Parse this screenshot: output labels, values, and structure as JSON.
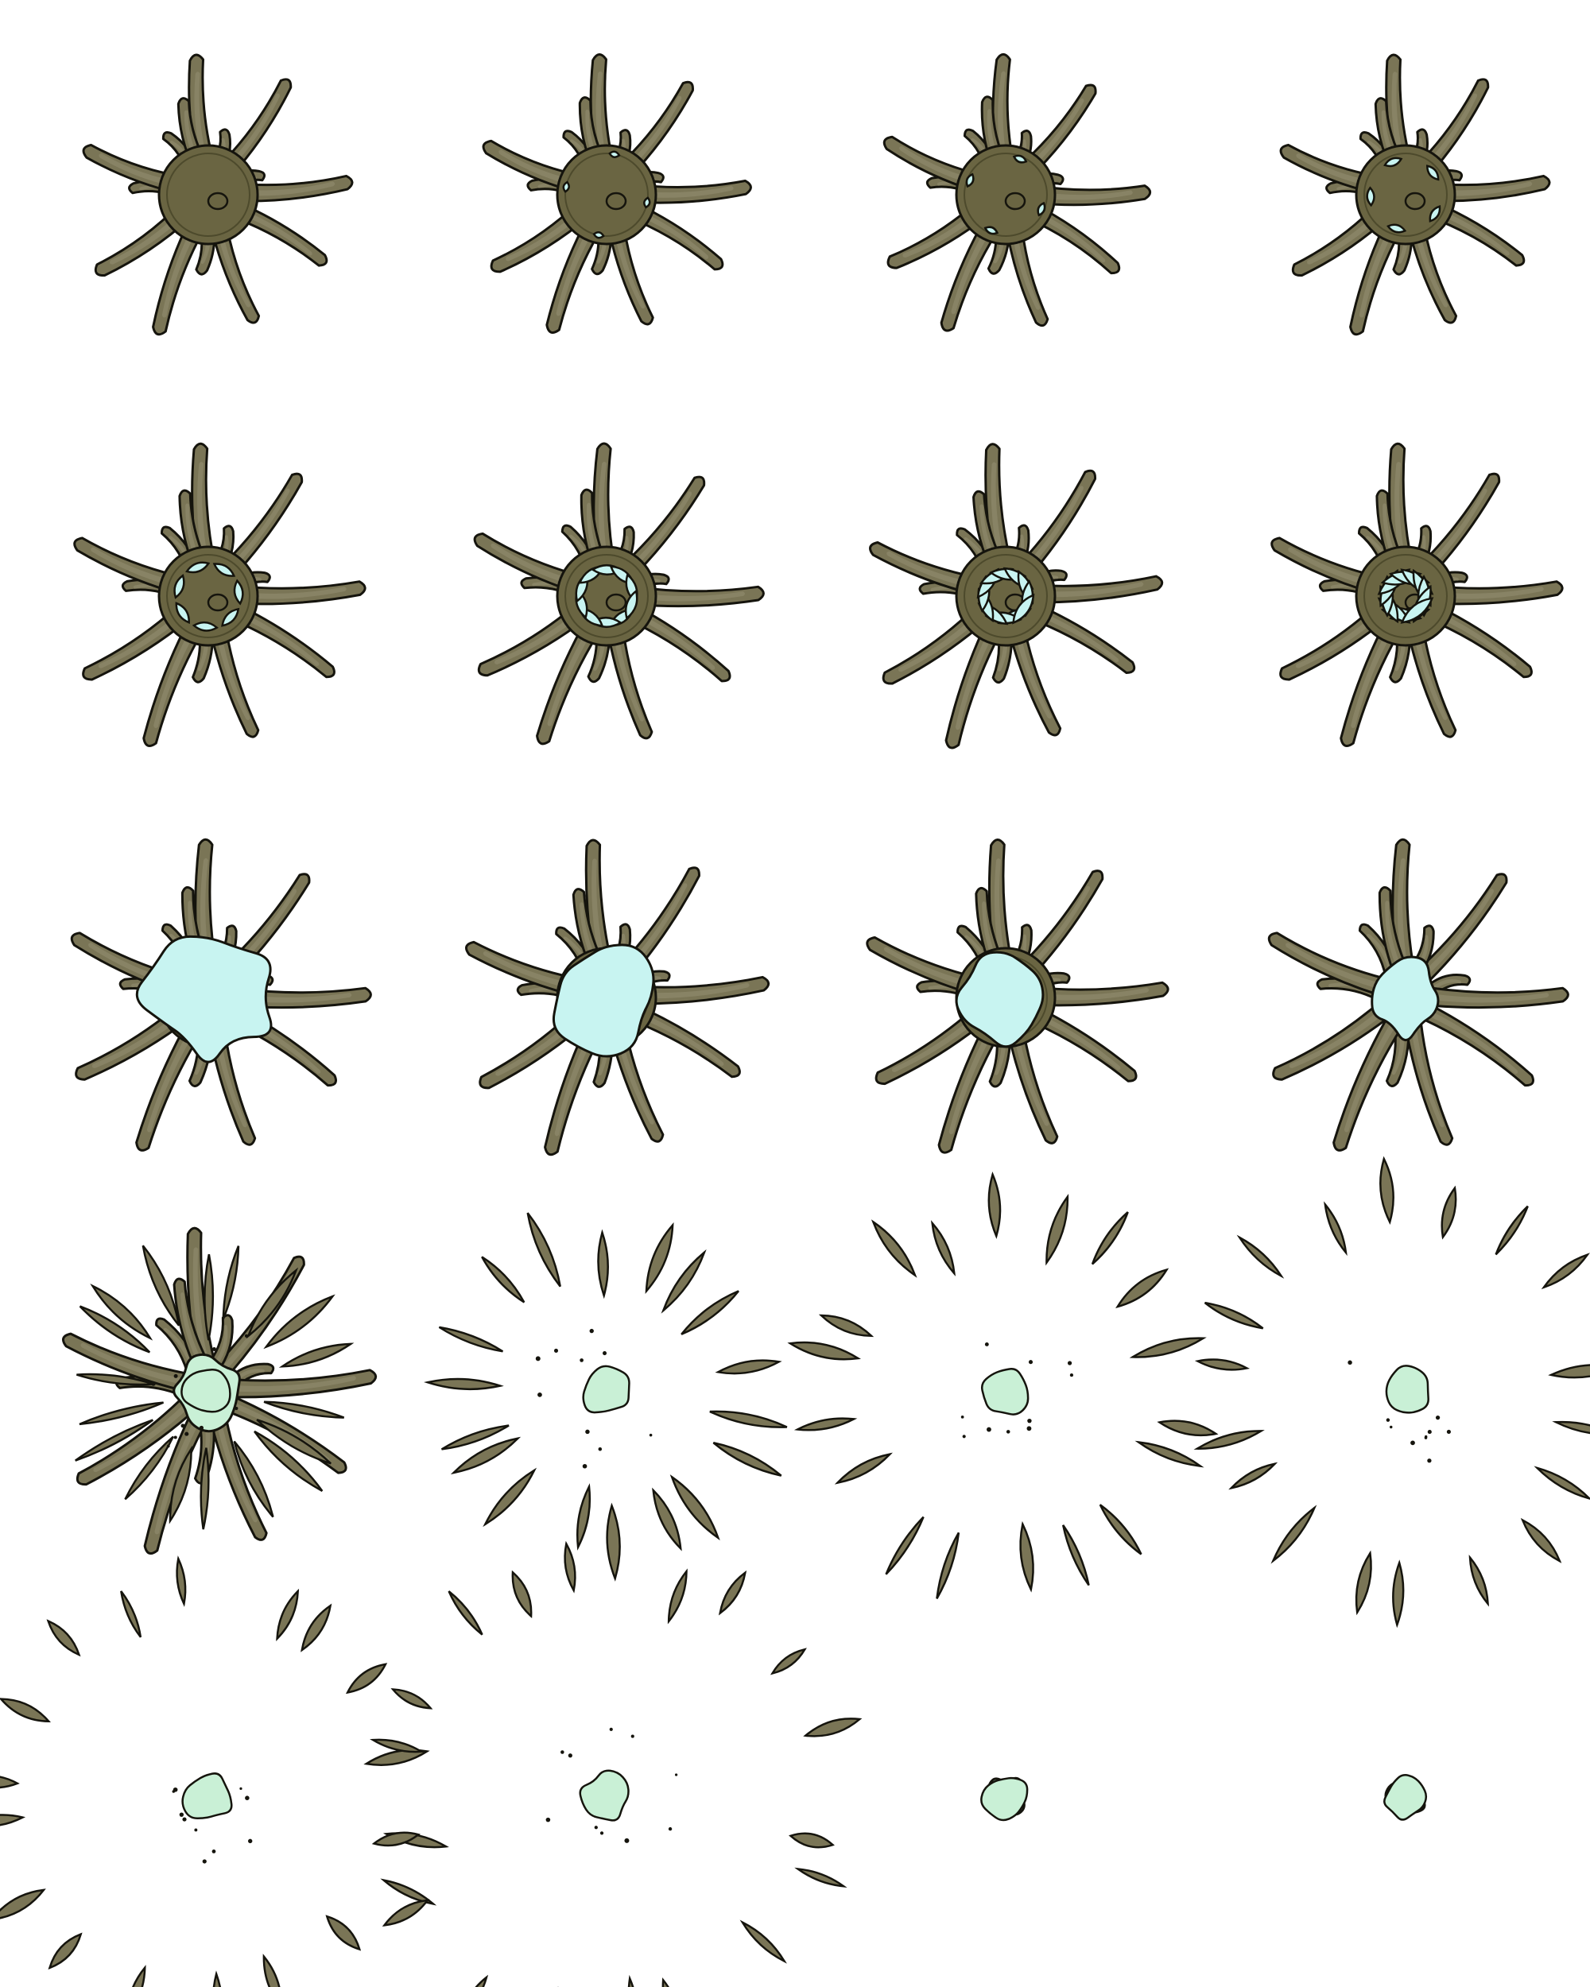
{
  "sheet": {
    "columns": 4,
    "rows": 5,
    "colors": {
      "tentacle_fill": "#7a7556",
      "tentacle_highlight": "#a39f82",
      "outline": "#15140d",
      "body_fill": "#6a6542",
      "body_dark": "#4d4a2c",
      "goo_cyan": "#c8f4f1",
      "goo_cyan_shade": "#9adfdc",
      "goo_mint": "#c9f0d6",
      "goo_mint_shade": "#9edcb6",
      "background": "#ffffff"
    }
  },
  "frames": [
    {
      "state": "idle",
      "goo_progress": 0.0,
      "splatter": 0.0,
      "tentacles_visible": true
    },
    {
      "state": "goo-specks",
      "goo_progress": 0.06,
      "splatter": 0.0,
      "tentacles_visible": true
    },
    {
      "state": "goo-drops",
      "goo_progress": 0.12,
      "splatter": 0.0,
      "tentacles_visible": true
    },
    {
      "state": "goo-blobs",
      "goo_progress": 0.2,
      "splatter": 0.0,
      "tentacles_visible": true
    },
    {
      "state": "goo-tendrils",
      "goo_progress": 0.3,
      "splatter": 0.0,
      "tentacles_visible": true
    },
    {
      "state": "goo-tendrils",
      "goo_progress": 0.4,
      "splatter": 0.0,
      "tentacles_visible": true
    },
    {
      "state": "goo-swirl",
      "goo_progress": 0.5,
      "splatter": 0.0,
      "tentacles_visible": true
    },
    {
      "state": "goo-swirl",
      "goo_progress": 0.58,
      "splatter": 0.0,
      "tentacles_visible": true
    },
    {
      "state": "goo-engulf",
      "goo_progress": 0.66,
      "splatter": 0.0,
      "tentacles_visible": true
    },
    {
      "state": "goo-engulf",
      "goo_progress": 0.74,
      "splatter": 0.0,
      "tentacles_visible": true
    },
    {
      "state": "goo-core",
      "goo_progress": 0.8,
      "splatter": 0.0,
      "tentacles_visible": true
    },
    {
      "state": "goo-core",
      "goo_progress": 0.84,
      "splatter": 0.0,
      "tentacles_visible": true
    },
    {
      "state": "burst",
      "goo_progress": 0.88,
      "splatter": 0.15,
      "tentacles_visible": true
    },
    {
      "state": "splatter",
      "goo_progress": 0.9,
      "splatter": 0.45,
      "tentacles_visible": false
    },
    {
      "state": "splatter",
      "goo_progress": 0.92,
      "splatter": 0.7,
      "tentacles_visible": false
    },
    {
      "state": "splatter",
      "goo_progress": 0.94,
      "splatter": 0.85,
      "tentacles_visible": false
    },
    {
      "state": "scatter",
      "goo_progress": 0.96,
      "splatter": 1.0,
      "tentacles_visible": false
    },
    {
      "state": "scatter",
      "goo_progress": 0.98,
      "splatter": 1.15,
      "tentacles_visible": false
    },
    {
      "state": "remnant",
      "goo_progress": 1.0,
      "splatter": 0,
      "tentacles_visible": false
    },
    {
      "state": "remnant",
      "goo_progress": 1.0,
      "splatter": 0,
      "tentacles_visible": false
    }
  ]
}
